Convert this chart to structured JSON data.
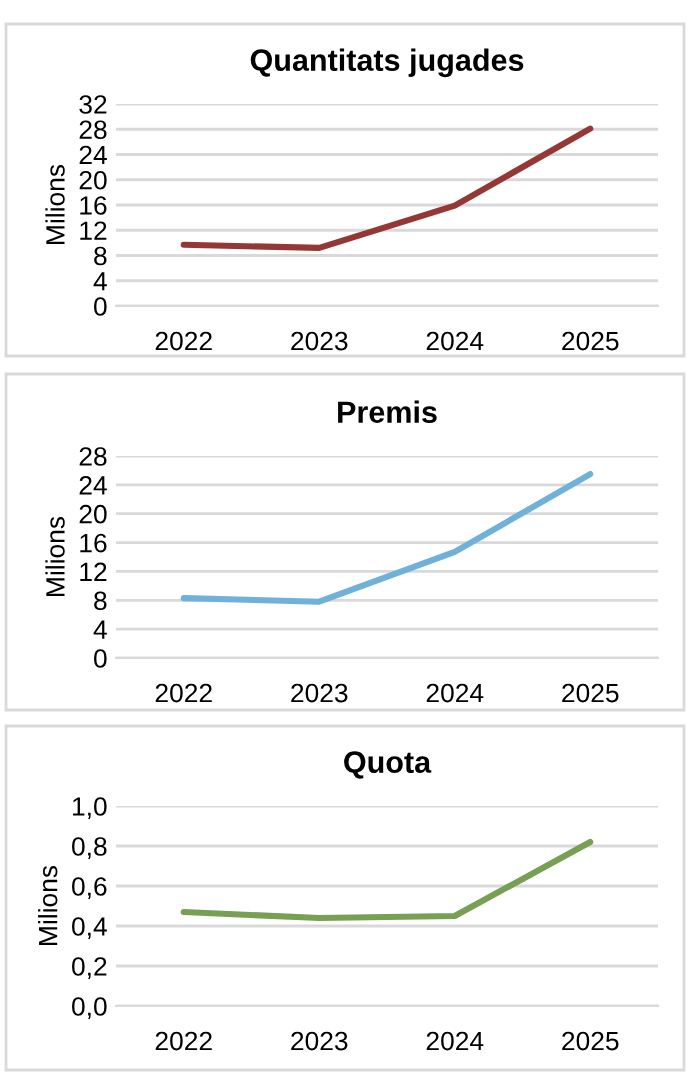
{
  "chart_data": [
    {
      "type": "line",
      "title": "Quantitats jugades",
      "ylabel": "Milions",
      "categories": [
        "2022",
        "2023",
        "2024",
        "2025"
      ],
      "series": [
        {
          "color": "#953735",
          "values": [
            9.7,
            9.2,
            15.9,
            28.1
          ]
        }
      ],
      "ylim": [
        0,
        32
      ],
      "yticks": [
        0,
        4,
        8,
        12,
        16,
        20,
        24,
        28,
        32
      ],
      "grid": "y"
    },
    {
      "type": "line",
      "title": "Premis",
      "ylabel": "Milions",
      "categories": [
        "2022",
        "2023",
        "2024",
        "2025"
      ],
      "series": [
        {
          "color": "#6fb1d9",
          "values": [
            8.3,
            7.8,
            14.7,
            25.5
          ]
        }
      ],
      "ylim": [
        0,
        28
      ],
      "yticks": [
        0,
        4,
        8,
        12,
        16,
        20,
        24,
        28
      ],
      "grid": "y"
    },
    {
      "type": "line",
      "title": "Quota",
      "ylabel": "Milions",
      "categories": [
        "2022",
        "2023",
        "2024",
        "2025"
      ],
      "series": [
        {
          "color": "#77a055",
          "values": [
            0.47,
            0.44,
            0.45,
            0.82
          ]
        }
      ],
      "ylim": [
        0,
        1.0
      ],
      "yticks": [
        {
          "value": 0,
          "label": "0,0"
        },
        {
          "value": 0.2,
          "label": "0,2"
        },
        {
          "value": 0.4,
          "label": "0,4"
        },
        {
          "value": 0.6,
          "label": "0,6"
        },
        {
          "value": 0.8,
          "label": "0,8"
        },
        {
          "value": 1.0,
          "label": "1,0"
        }
      ],
      "grid": "y"
    }
  ]
}
